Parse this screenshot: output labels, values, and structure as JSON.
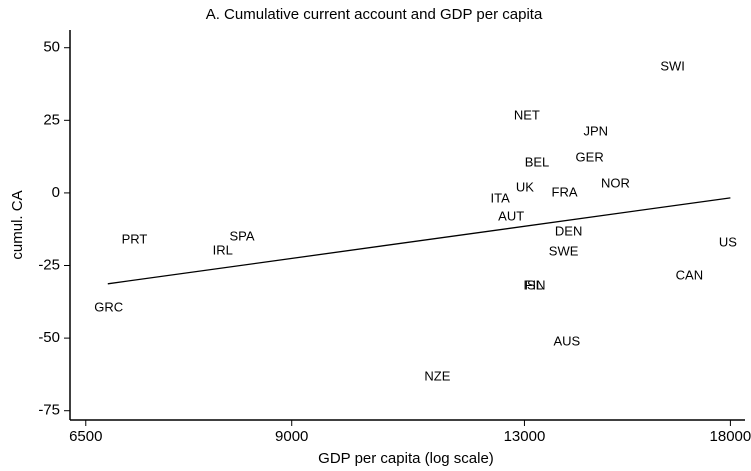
{
  "chart_data": {
    "type": "scatter",
    "title": "A. Cumulative current account and GDP per capita",
    "x_label": "GDP per capita (log scale)",
    "y_label": "cumul. CA",
    "x_scale": "log",
    "labels": [
      "SWI",
      "NET",
      "JPN",
      "GER",
      "BEL",
      "UK",
      "NOR",
      "ITA",
      "FRA",
      "AUT",
      "DEN",
      "SWE",
      "PRT",
      "SPA",
      "IRL",
      "US",
      "CAN",
      "FIN",
      "ISL",
      "GRC",
      "AUS",
      "NZE"
    ],
    "x": [
      16430,
      13050,
      14550,
      14410,
      13260,
      13010,
      15010,
      12510,
      13850,
      12730,
      13940,
      13830,
      7020,
      8320,
      8070,
      17930,
      16870,
      13220,
      13180,
      6740,
      13900,
      11330
    ],
    "y": [
      43.4,
      26.5,
      21,
      12,
      10.3,
      1.7,
      3.1,
      -2.1,
      0,
      -8.3,
      -13.4,
      -20.3,
      -16.2,
      -15.2,
      -20,
      -17.2,
      -28.6,
      -32,
      -32,
      -39.6,
      -51.3,
      -63.4
    ],
    "fit": {
      "x": [
        6730,
        18000
      ],
      "y": [
        -31.3,
        -1.7
      ]
    },
    "xlim": [
      6340,
      18420
    ],
    "ylim": [
      -78.2,
      56.1
    ],
    "xticks": [
      6500,
      9000,
      13000,
      18000
    ],
    "yticks": [
      50,
      25,
      0,
      -25,
      -50,
      -75
    ],
    "color": "#000000"
  }
}
